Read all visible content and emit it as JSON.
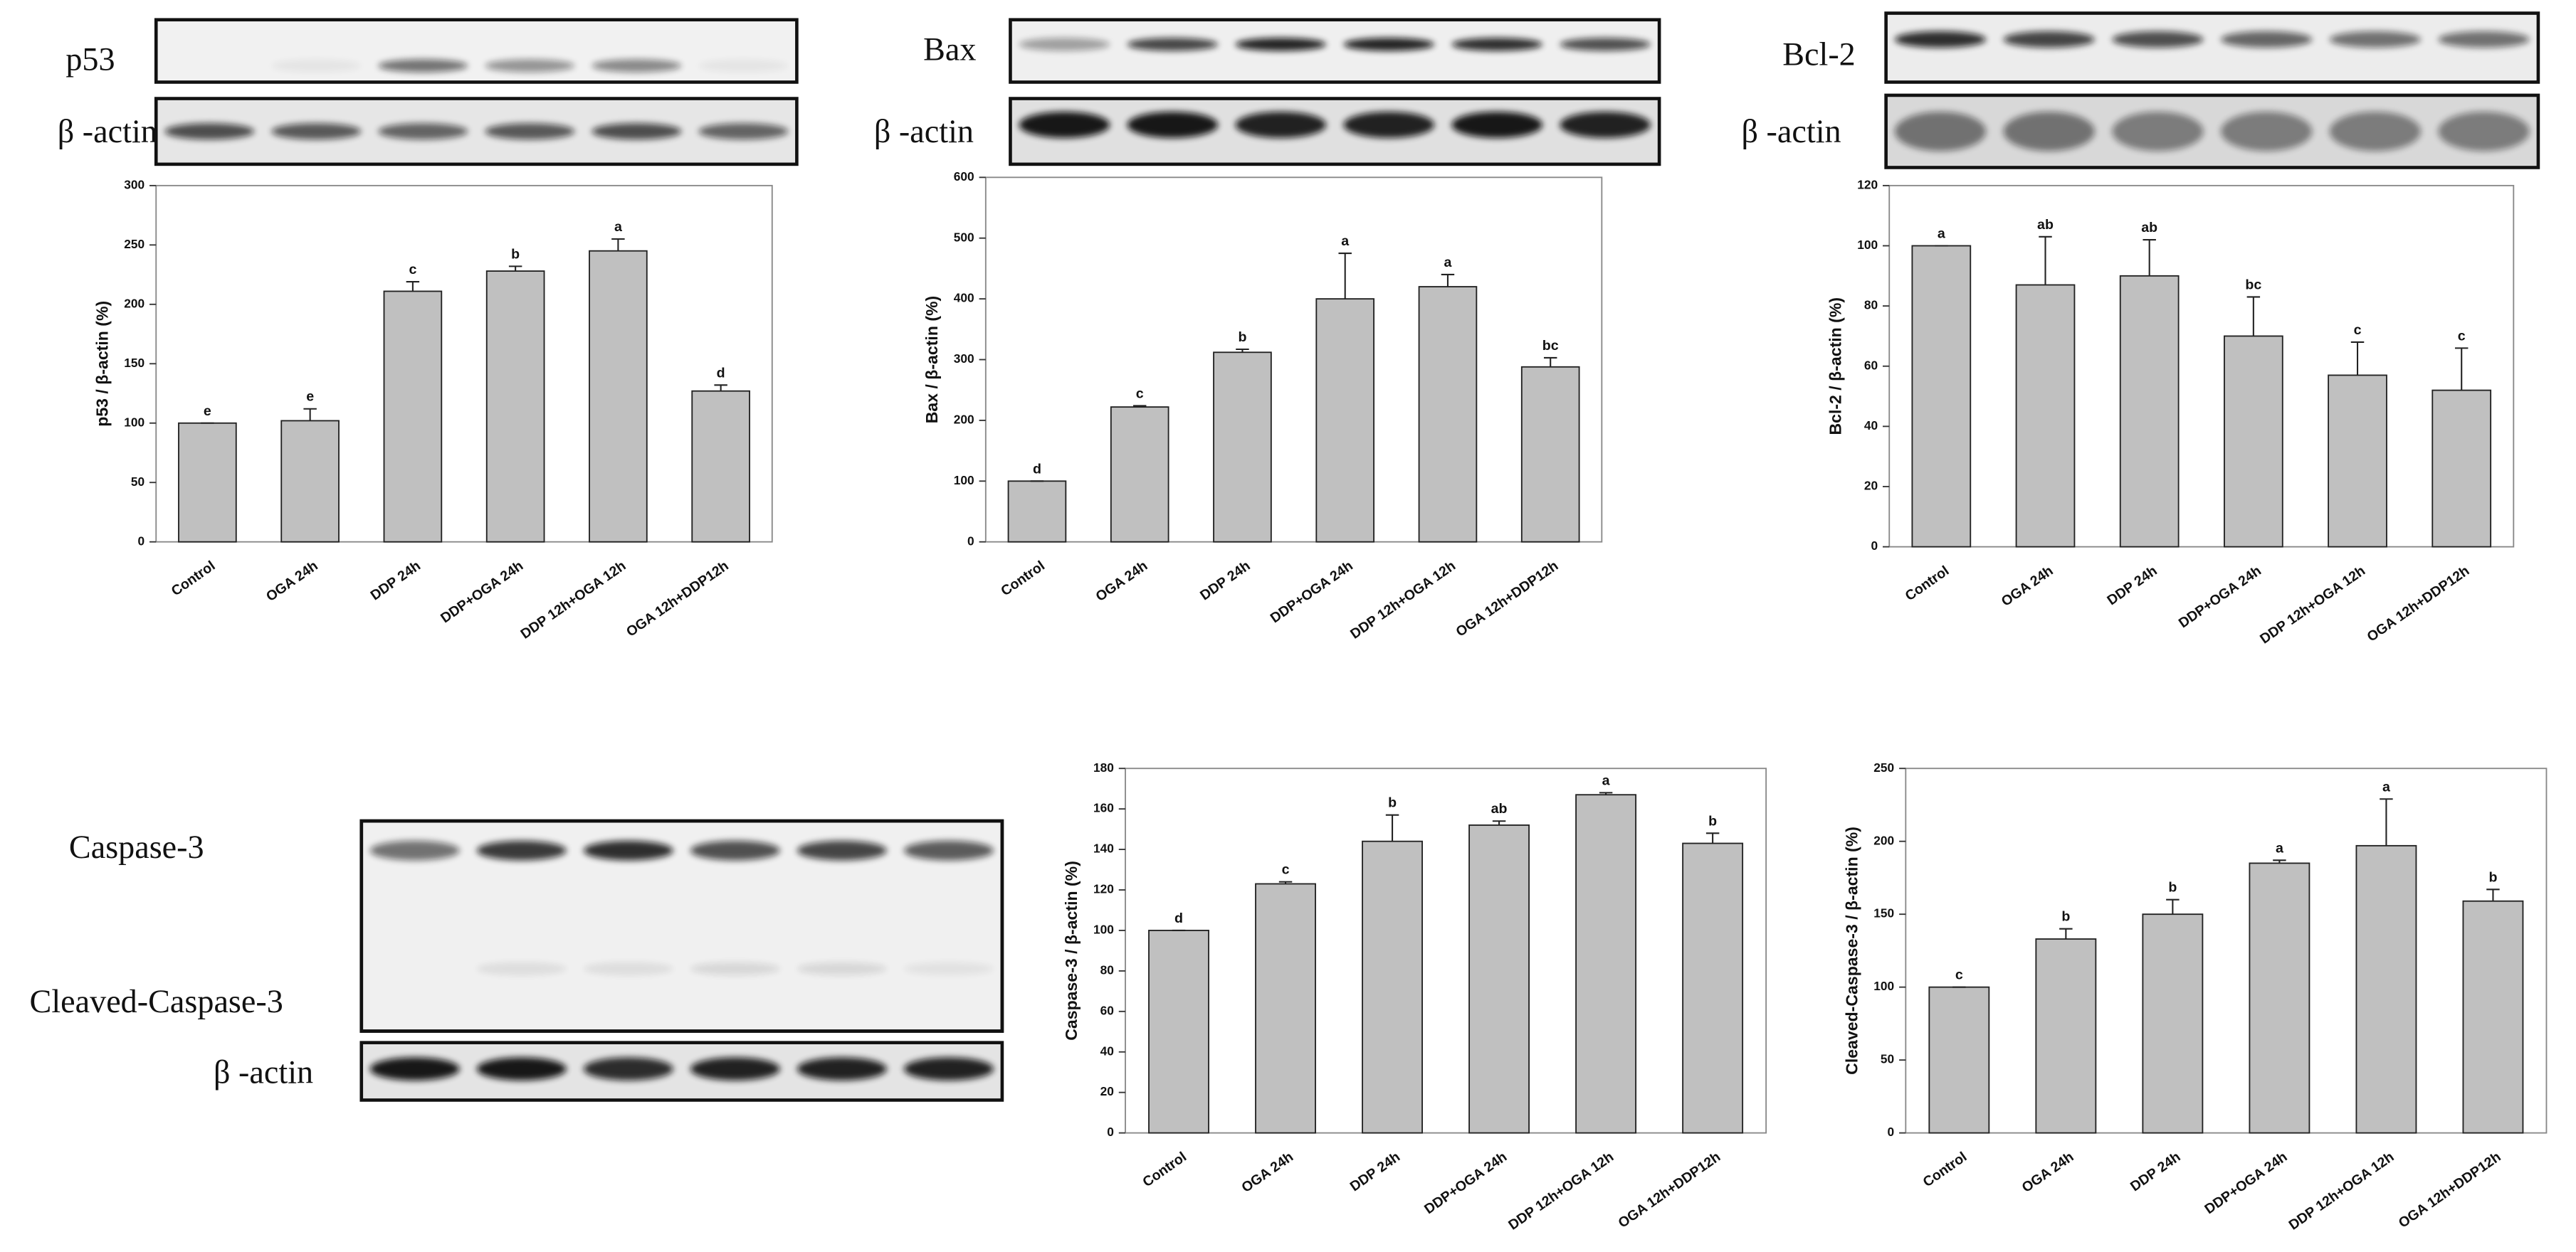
{
  "blots": [
    {
      "labels": [
        "p53",
        "β -actin"
      ]
    },
    {
      "labels": [
        "Bax",
        "β -actin"
      ]
    },
    {
      "labels": [
        "Bcl-2",
        "β -actin"
      ]
    },
    {
      "labels": [
        "Caspase-3",
        "Cleaved-Caspase-3",
        "β -actin"
      ]
    }
  ],
  "chart_data": [
    {
      "type": "bar",
      "y_label": "p53 / β-actin (%)",
      "categories": [
        "Control",
        "OGA 24h",
        "DDP 24h",
        "DDP+OGA 24h",
        "DDP 12h+OGA 12h",
        "OGA 12h+DDP12h"
      ],
      "values": [
        100,
        102,
        211,
        228,
        245,
        127
      ],
      "errors": [
        0,
        10,
        8,
        4,
        10,
        5
      ],
      "annotations": [
        "e",
        "e",
        "c",
        "b",
        "a",
        "d"
      ],
      "color": "#c0c0c0",
      "ylim": [
        0,
        300
      ],
      "yticks": [
        0,
        50,
        100,
        150,
        200,
        250,
        300
      ]
    },
    {
      "type": "bar",
      "y_label": "Bax / β-actin (%)",
      "categories": [
        "Control",
        "OGA 24h",
        "DDP 24h",
        "DDP+OGA 24h",
        "DDP 12h+OGA 12h",
        "OGA 12h+DDP12h"
      ],
      "values": [
        100,
        222,
        312,
        400,
        420,
        288
      ],
      "errors": [
        0,
        2,
        5,
        75,
        20,
        15
      ],
      "annotations": [
        "d",
        "c",
        "b",
        "a",
        "a",
        "bc"
      ],
      "color": "#c0c0c0",
      "ylim": [
        0,
        600
      ],
      "yticks": [
        0,
        100,
        200,
        300,
        400,
        500,
        600
      ]
    },
    {
      "type": "bar",
      "y_label": "Bcl-2 / β-actin (%)",
      "categories": [
        "Control",
        "OGA 24h",
        "DDP 24h",
        "DDP+OGA 24h",
        "DDP 12h+OGA 12h",
        "OGA 12h+DDP12h"
      ],
      "values": [
        100,
        87,
        90,
        70,
        57,
        52
      ],
      "errors": [
        0,
        16,
        12,
        13,
        11,
        14
      ],
      "annotations": [
        "a",
        "ab",
        "ab",
        "bc",
        "c",
        "c"
      ],
      "color": "#c0c0c0",
      "ylim": [
        0,
        120
      ],
      "yticks": [
        0,
        20,
        40,
        60,
        80,
        100,
        120
      ]
    },
    {
      "type": "bar",
      "y_label": "Caspase-3 / β-actin (%)",
      "categories": [
        "Control",
        "OGA 24h",
        "DDP 24h",
        "DDP+OGA 24h",
        "DDP 12h+OGA 12h",
        "OGA 12h+DDP12h"
      ],
      "values": [
        100,
        123,
        144,
        152,
        167,
        143
      ],
      "errors": [
        0,
        1,
        13,
        2,
        1,
        5
      ],
      "annotations": [
        "d",
        "c",
        "b",
        "ab",
        "a",
        "b"
      ],
      "color": "#c0c0c0",
      "ylim": [
        0,
        180
      ],
      "yticks": [
        0,
        20,
        40,
        60,
        80,
        100,
        120,
        140,
        160,
        180
      ]
    },
    {
      "type": "bar",
      "y_label": "Cleaved-Caspase-3 / β-actin (%)",
      "categories": [
        "Control",
        "OGA 24h",
        "DDP 24h",
        "DDP+OGA 24h",
        "DDP 12h+OGA 12h",
        "OGA 12h+DDP12h"
      ],
      "values": [
        100,
        133,
        150,
        185,
        197,
        159
      ],
      "errors": [
        0,
        7,
        10,
        2,
        32,
        8
      ],
      "annotations": [
        "c",
        "b",
        "b",
        "a",
        "a",
        "b"
      ],
      "color": "#c0c0c0",
      "ylim": [
        0,
        250
      ],
      "yticks": [
        0,
        50,
        100,
        150,
        200,
        250
      ]
    }
  ]
}
